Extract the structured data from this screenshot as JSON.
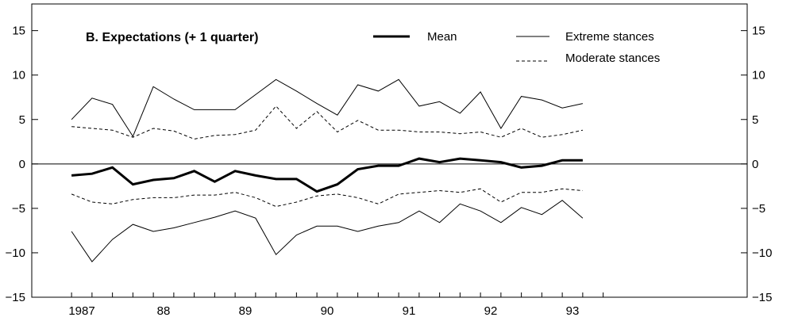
{
  "chart_data": {
    "type": "line",
    "title": "B. Expectations (+ 1 quarter)",
    "xlabel": "",
    "ylabel": "",
    "ylim": [
      -15,
      18
    ],
    "yticks": [
      -15,
      -10,
      -5,
      0,
      5,
      10,
      15
    ],
    "ytick_labels": [
      "−15",
      "−10",
      "−5",
      "0",
      "5",
      "10",
      "15"
    ],
    "xticks": [
      1987,
      1988,
      1989,
      1990,
      1991,
      1992,
      1993
    ],
    "xtick_labels": [
      "1987",
      "88",
      "89",
      "90",
      "91",
      "92",
      "93"
    ],
    "x": [
      1986.875,
      1987.125,
      1987.375,
      1987.625,
      1987.875,
      1988.125,
      1988.375,
      1988.625,
      1988.875,
      1989.125,
      1989.375,
      1989.625,
      1989.875,
      1990.125,
      1990.375,
      1990.625,
      1990.875,
      1991.125,
      1991.375,
      1991.625,
      1991.875,
      1992.125,
      1992.375,
      1992.625,
      1992.875,
      1993.125,
      1993.375
    ],
    "reference_line_y": 0,
    "grid": false,
    "series": [
      {
        "name": "Mean",
        "style": "thick",
        "values": [
          -1.3,
          -1.1,
          -0.4,
          -2.3,
          -1.8,
          -1.6,
          -0.8,
          -2.0,
          -0.8,
          -1.3,
          -1.7,
          -1.7,
          -3.1,
          -2.3,
          -0.6,
          -0.2,
          -0.2,
          0.6,
          0.2,
          0.6,
          0.4,
          0.2,
          -0.4,
          -0.2,
          0.4,
          0.4,
          null
        ]
      },
      {
        "name": "Extreme stances",
        "style": "thin",
        "values": [
          5.0,
          7.4,
          6.7,
          3.1,
          8.7,
          7.3,
          6.1,
          6.1,
          6.1,
          7.8,
          9.5,
          8.2,
          6.8,
          5.5,
          8.9,
          8.2,
          9.5,
          6.5,
          7.0,
          5.7,
          8.1,
          4.0,
          7.6,
          7.2,
          6.3,
          6.8,
          null
        ]
      },
      {
        "name": "Moderate stances",
        "style": "dashed",
        "values": [
          4.2,
          4.0,
          3.8,
          3.0,
          4.0,
          3.7,
          2.8,
          3.2,
          3.3,
          3.8,
          6.5,
          4.0,
          5.9,
          3.6,
          4.9,
          3.8,
          3.8,
          3.6,
          3.6,
          3.4,
          3.6,
          3.0,
          4.0,
          3.0,
          3.3,
          3.8,
          null
        ]
      },
      {
        "name": "Extreme stances",
        "style": "thin",
        "values": [
          -7.6,
          -11.0,
          -8.5,
          -6.8,
          -7.6,
          -7.2,
          -6.6,
          -6.0,
          -5.3,
          -6.1,
          -10.2,
          -8.0,
          -7.0,
          -7.0,
          -7.6,
          -7.0,
          -6.6,
          -5.3,
          -6.6,
          -4.5,
          -5.3,
          -6.6,
          -4.9,
          -5.7,
          -4.1,
          -6.1,
          null
        ]
      },
      {
        "name": "Moderate stances",
        "style": "dashed",
        "values": [
          -3.4,
          -4.3,
          -4.5,
          -4.0,
          -3.8,
          -3.8,
          -3.5,
          -3.5,
          -3.2,
          -3.8,
          -4.8,
          -4.3,
          -3.6,
          -3.4,
          -3.8,
          -4.5,
          -3.4,
          -3.2,
          -3.0,
          -3.2,
          -2.8,
          -4.3,
          -3.2,
          -3.2,
          -2.8,
          -3.0,
          null
        ]
      }
    ],
    "legend": [
      {
        "label": "Mean",
        "style": "thick"
      },
      {
        "label": "Extreme stances",
        "style": "thin"
      },
      {
        "label": "Moderate stances",
        "style": "dashed"
      }
    ],
    "legend_position": "top"
  }
}
